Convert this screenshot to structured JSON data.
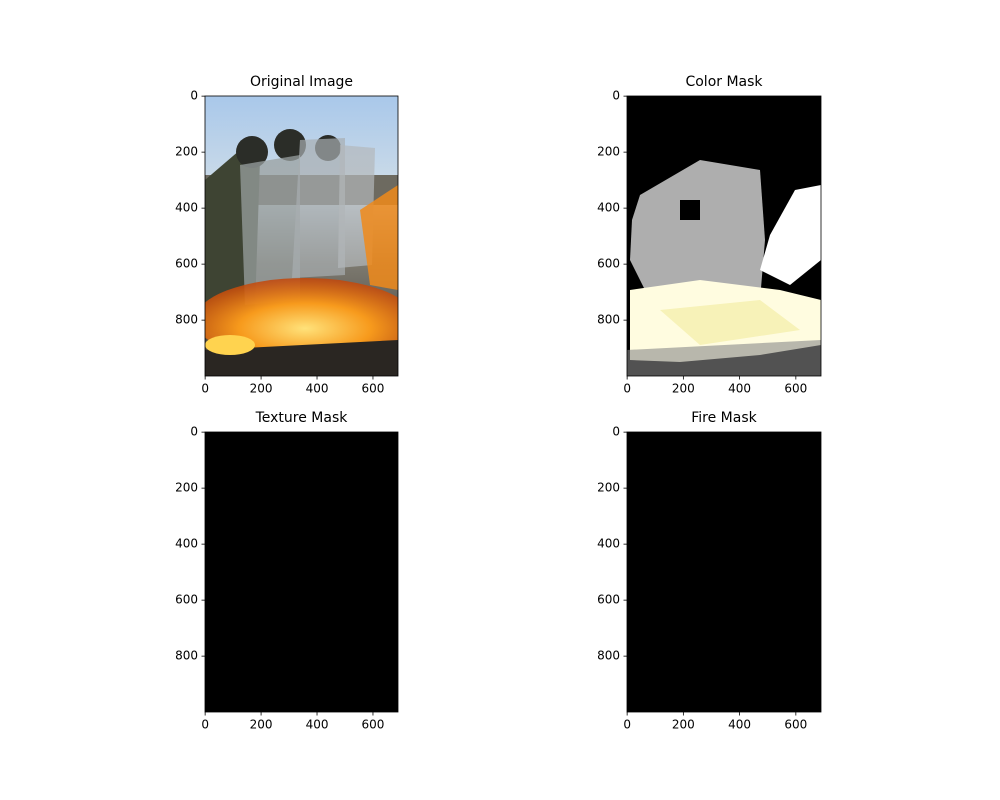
{
  "chart_data": [
    {
      "type": "image",
      "title": "Original Image",
      "xlim": [
        -0.5,
        689.5
      ],
      "ylim": [
        999.5,
        -0.5
      ],
      "xticks": [
        0,
        200,
        400,
        600
      ],
      "yticks": [
        0,
        200,
        400,
        600,
        800
      ]
    },
    {
      "type": "image",
      "title": "Color Mask",
      "xlim": [
        -0.5,
        689.5
      ],
      "ylim": [
        999.5,
        -0.5
      ],
      "xticks": [
        0,
        200,
        400,
        600
      ],
      "yticks": [
        0,
        200,
        400,
        600,
        800
      ]
    },
    {
      "type": "image",
      "title": "Texture Mask",
      "xlim": [
        -0.5,
        689.5
      ],
      "ylim": [
        999.5,
        -0.5
      ],
      "xticks": [
        0,
        200,
        400,
        600
      ],
      "yticks": [
        0,
        200,
        400,
        600,
        800
      ]
    },
    {
      "type": "image",
      "title": "Fire Mask",
      "xlim": [
        -0.5,
        689.5
      ],
      "ylim": [
        999.5,
        -0.5
      ],
      "xticks": [
        0,
        200,
        400,
        600
      ],
      "yticks": [
        0,
        200,
        400,
        600,
        800
      ]
    }
  ]
}
